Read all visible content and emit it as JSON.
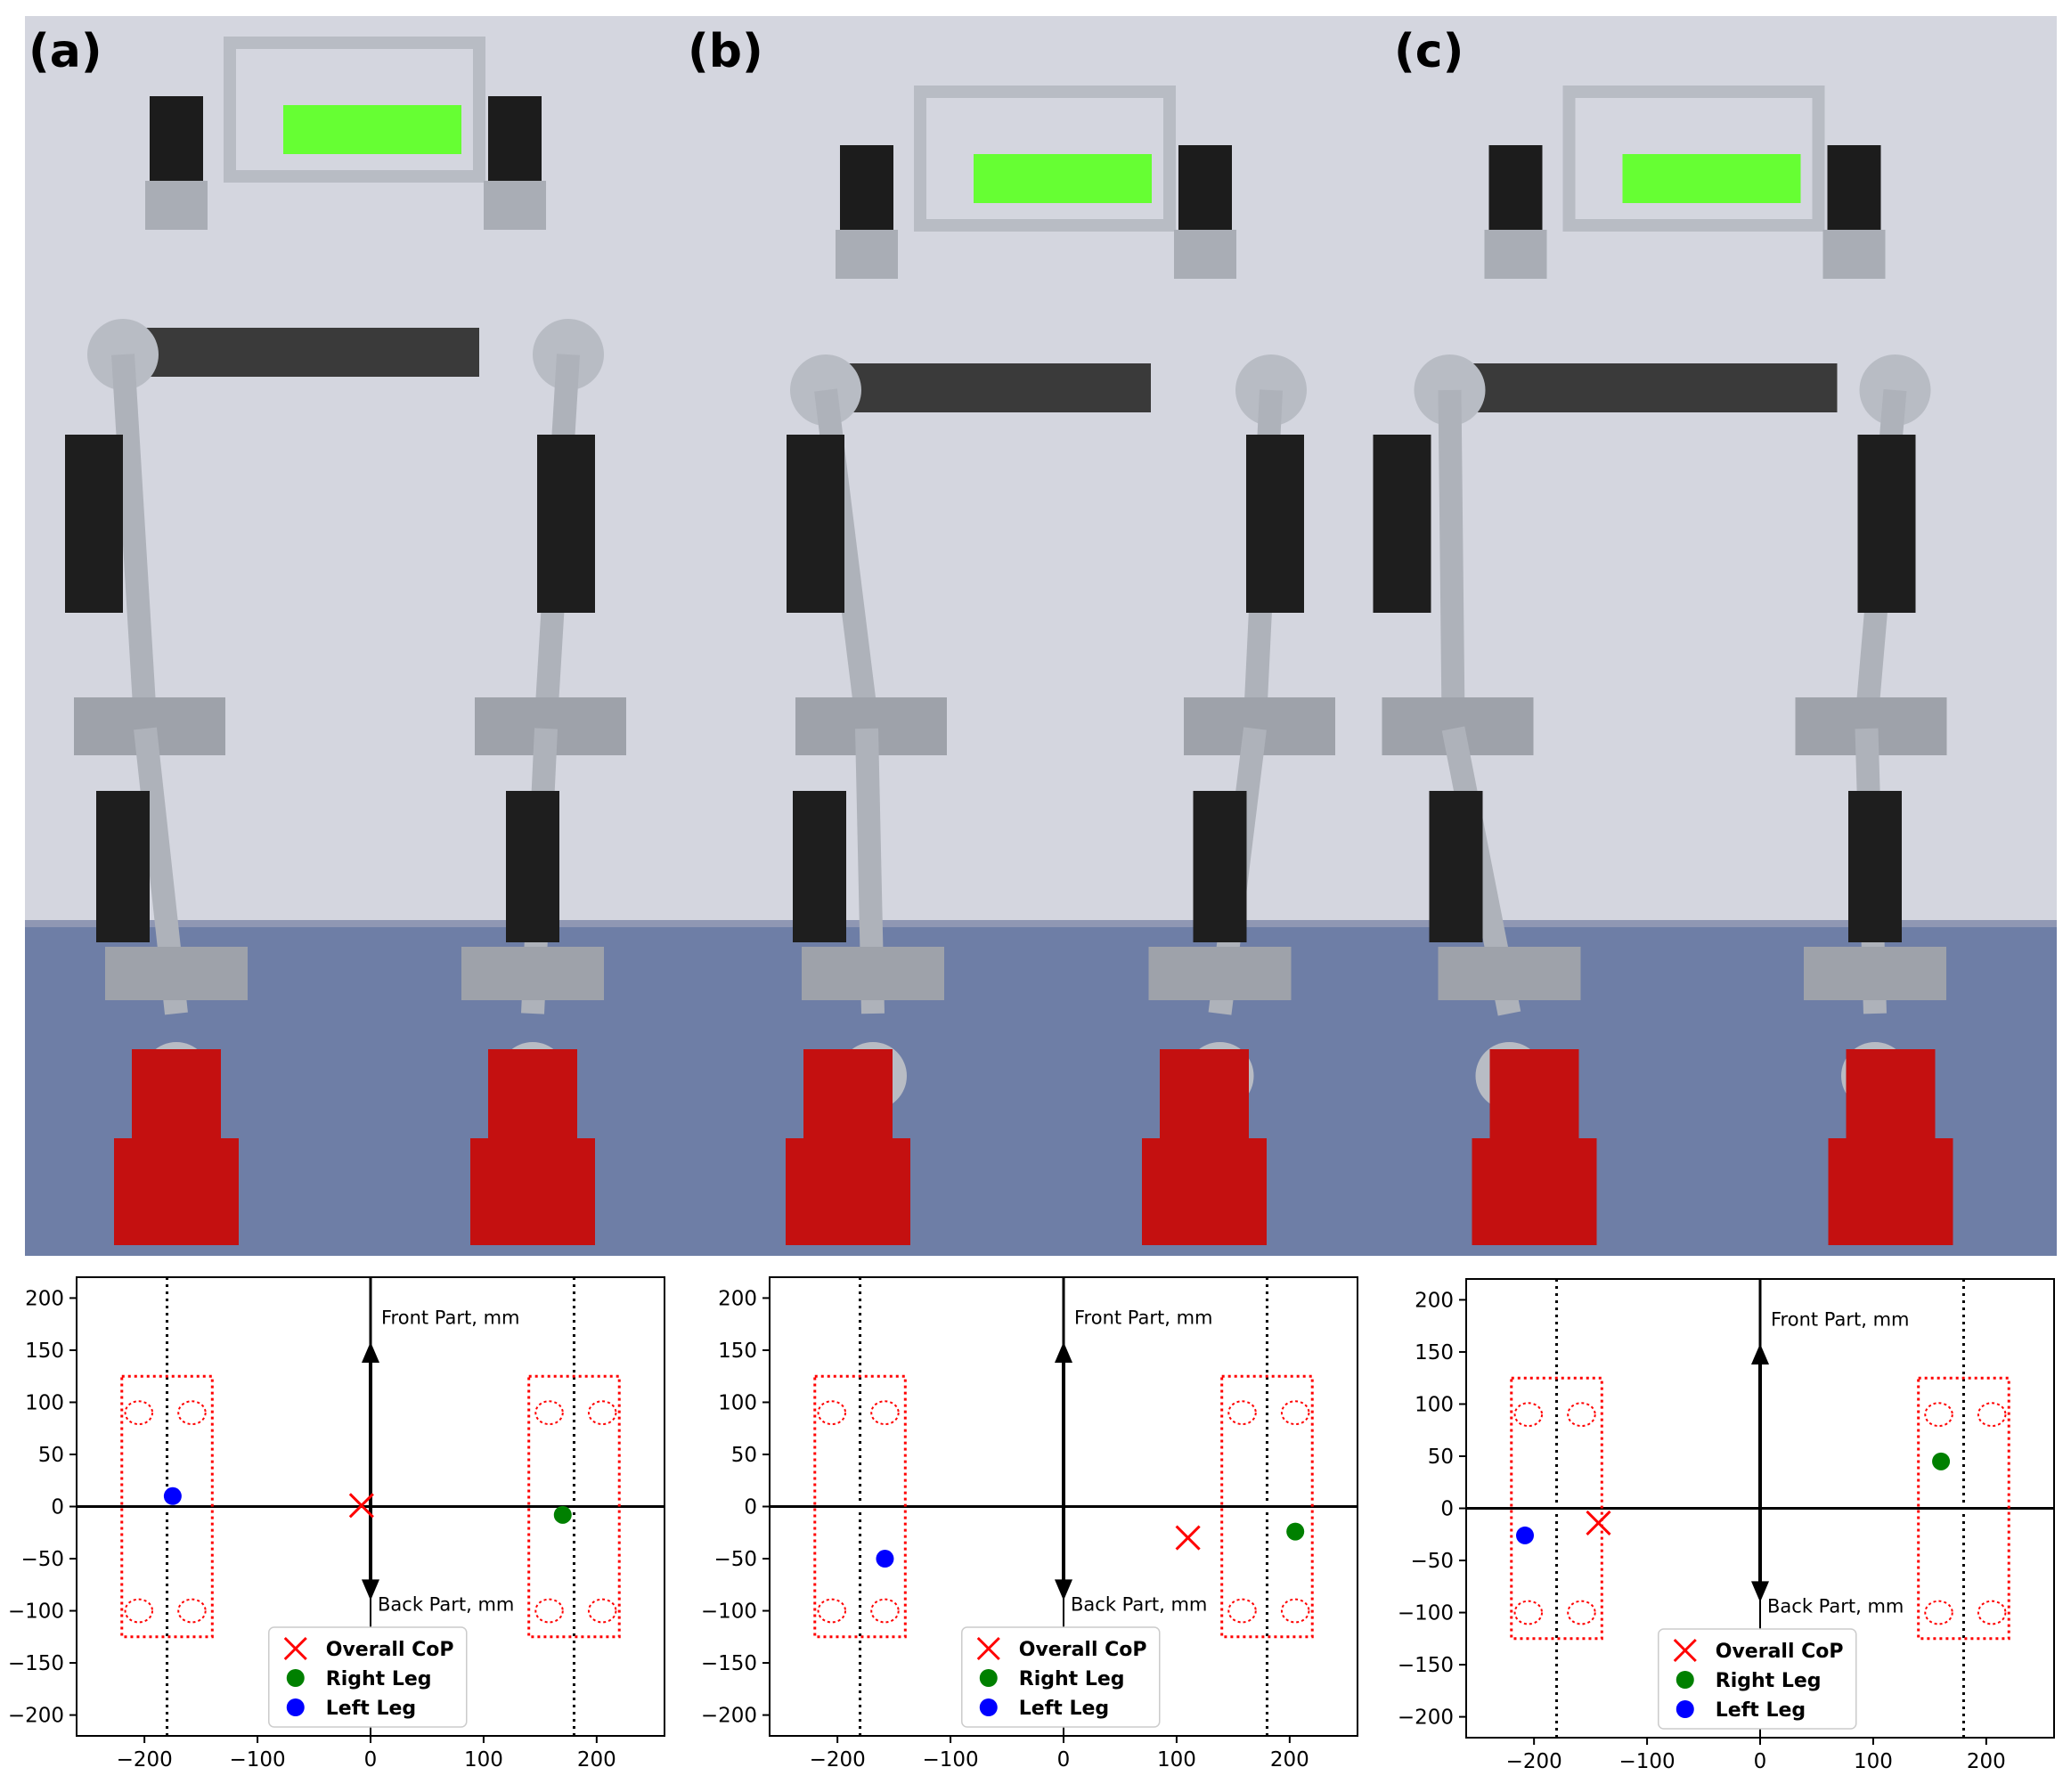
{
  "panels": [
    {
      "label": "(a)"
    },
    {
      "label": "(b)"
    },
    {
      "label": "(c)"
    }
  ],
  "annotations": {
    "front": "Front Part, mm",
    "back": "Back Part, mm"
  },
  "legend": {
    "cop": "Overall CoP",
    "right": "Right Leg",
    "left": "Left Leg"
  },
  "colors": {
    "cop": "#ff0000",
    "right": "#008000",
    "left": "#0000ff",
    "sensor": "#ff0000",
    "frame_green": "#66ff33",
    "foot_red": "#c41010"
  },
  "chart_data": [
    {
      "type": "scatter",
      "panel": "(a)",
      "xlim": [
        -260,
        260
      ],
      "ylim": [
        -220,
        220
      ],
      "xticks": [
        -200,
        -100,
        0,
        100,
        200
      ],
      "yticks": [
        -200,
        -150,
        -100,
        -50,
        0,
        50,
        100,
        150,
        200
      ],
      "guide_lines_x": [
        -180,
        180
      ],
      "feet": [
        {
          "x": [
            -220,
            -140
          ],
          "y": [
            -125,
            125
          ]
        },
        {
          "x": [
            140,
            220
          ],
          "y": [
            -125,
            125
          ]
        }
      ],
      "sensors": [
        {
          "x": -205,
          "y": 90
        },
        {
          "x": -158,
          "y": 90
        },
        {
          "x": -205,
          "y": -100
        },
        {
          "x": -158,
          "y": -100
        },
        {
          "x": 158,
          "y": 90
        },
        {
          "x": 205,
          "y": 90
        },
        {
          "x": 158,
          "y": -100
        },
        {
          "x": 205,
          "y": -100
        }
      ],
      "series": [
        {
          "name": "Overall CoP",
          "marker": "x",
          "x": -8,
          "y": 1
        },
        {
          "name": "Right Leg",
          "marker": "o",
          "x": 170,
          "y": -8
        },
        {
          "name": "Left Leg",
          "marker": "o",
          "x": -175,
          "y": 10
        }
      ],
      "legend_position": "lower center"
    },
    {
      "type": "scatter",
      "panel": "(b)",
      "xlim": [
        -260,
        260
      ],
      "ylim": [
        -220,
        220
      ],
      "xticks": [
        -200,
        -100,
        0,
        100,
        200
      ],
      "yticks": [
        -200,
        -150,
        -100,
        -50,
        0,
        50,
        100,
        150,
        200
      ],
      "guide_lines_x": [
        -180,
        180
      ],
      "feet": [
        {
          "x": [
            -220,
            -140
          ],
          "y": [
            -125,
            125
          ]
        },
        {
          "x": [
            140,
            220
          ],
          "y": [
            -125,
            125
          ]
        }
      ],
      "sensors": [
        {
          "x": -205,
          "y": 90
        },
        {
          "x": -158,
          "y": 90
        },
        {
          "x": -205,
          "y": -100
        },
        {
          "x": -158,
          "y": -100
        },
        {
          "x": 158,
          "y": 90
        },
        {
          "x": 205,
          "y": 90
        },
        {
          "x": 158,
          "y": -100
        },
        {
          "x": 205,
          "y": -100
        }
      ],
      "series": [
        {
          "name": "Overall CoP",
          "marker": "x",
          "x": 110,
          "y": -30
        },
        {
          "name": "Right Leg",
          "marker": "o",
          "x": 205,
          "y": -24
        },
        {
          "name": "Left Leg",
          "marker": "o",
          "x": -158,
          "y": -50
        }
      ],
      "legend_position": "lower center"
    },
    {
      "type": "scatter",
      "panel": "(c)",
      "xlim": [
        -260,
        260
      ],
      "ylim": [
        -220,
        220
      ],
      "xticks": [
        -200,
        -100,
        0,
        100,
        200
      ],
      "yticks": [
        -200,
        -150,
        -100,
        -50,
        0,
        50,
        100,
        150,
        200
      ],
      "guide_lines_x": [
        -180,
        180
      ],
      "feet": [
        {
          "x": [
            -220,
            -140
          ],
          "y": [
            -125,
            125
          ]
        },
        {
          "x": [
            140,
            220
          ],
          "y": [
            -125,
            125
          ]
        }
      ],
      "sensors": [
        {
          "x": -205,
          "y": 90
        },
        {
          "x": -158,
          "y": 90
        },
        {
          "x": -205,
          "y": -100
        },
        {
          "x": -158,
          "y": -100
        },
        {
          "x": 158,
          "y": 90
        },
        {
          "x": 205,
          "y": 90
        },
        {
          "x": 158,
          "y": -100
        },
        {
          "x": 205,
          "y": -100
        }
      ],
      "series": [
        {
          "name": "Overall CoP",
          "marker": "x",
          "x": -143,
          "y": -14
        },
        {
          "name": "Right Leg",
          "marker": "o",
          "x": 160,
          "y": 45
        },
        {
          "name": "Left Leg",
          "marker": "o",
          "x": -208,
          "y": -26
        }
      ],
      "legend_position": "lower center"
    }
  ]
}
